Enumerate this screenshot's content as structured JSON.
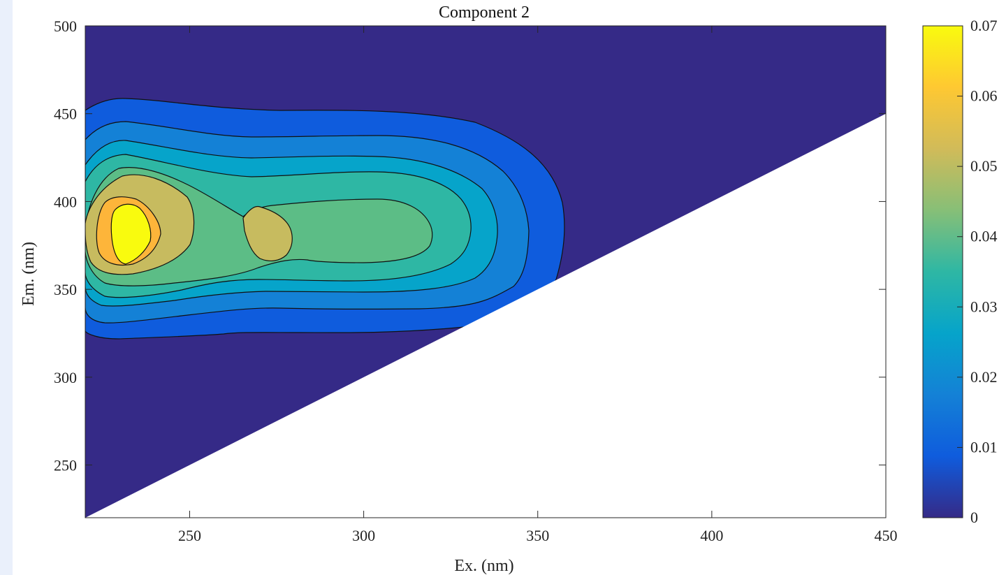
{
  "chart_data": {
    "type": "heatmap",
    "subtype": "filled-contour",
    "title": "Component 2",
    "xlabel": "Ex. (nm)",
    "ylabel": "Em. (nm)",
    "xlim": [
      220,
      450
    ],
    "ylim": [
      220,
      500
    ],
    "xticks": [
      250,
      300,
      350,
      400,
      450
    ],
    "yticks": [
      250,
      300,
      350,
      400,
      450,
      500
    ],
    "masked_region": "Em < Ex (no data)",
    "grid": false,
    "colormap": "parula",
    "colorbar": {
      "position": "right",
      "range": [
        0,
        0.07
      ],
      "ticks": [
        0,
        0.01,
        0.02,
        0.03,
        0.04,
        0.05,
        0.06,
        0.07
      ],
      "tick_labels": [
        "0",
        "0.01",
        "0.02",
        "0.03",
        "0.04",
        "0.05",
        "0.06",
        "0.07"
      ],
      "stops": [
        "#352a87",
        "#0f5cdd",
        "#1481d6",
        "#06a4ca",
        "#2eb7a4",
        "#87bf77",
        "#d1bb59",
        "#fec832",
        "#f9fb0e"
      ]
    },
    "contour_levels": [
      0,
      0.01,
      0.02,
      0.03,
      0.04,
      0.05,
      0.06,
      0.07
    ],
    "level_colors": [
      "#352a87",
      "#0f5cdd",
      "#1481d6",
      "#06a4ca",
      "#2eb7a4",
      "#5cbd86",
      "#c7bb5f",
      "#fdb53a",
      "#f9fb0e"
    ],
    "peak": {
      "ex": 230,
      "em": 383,
      "value": 0.07
    }
  }
}
